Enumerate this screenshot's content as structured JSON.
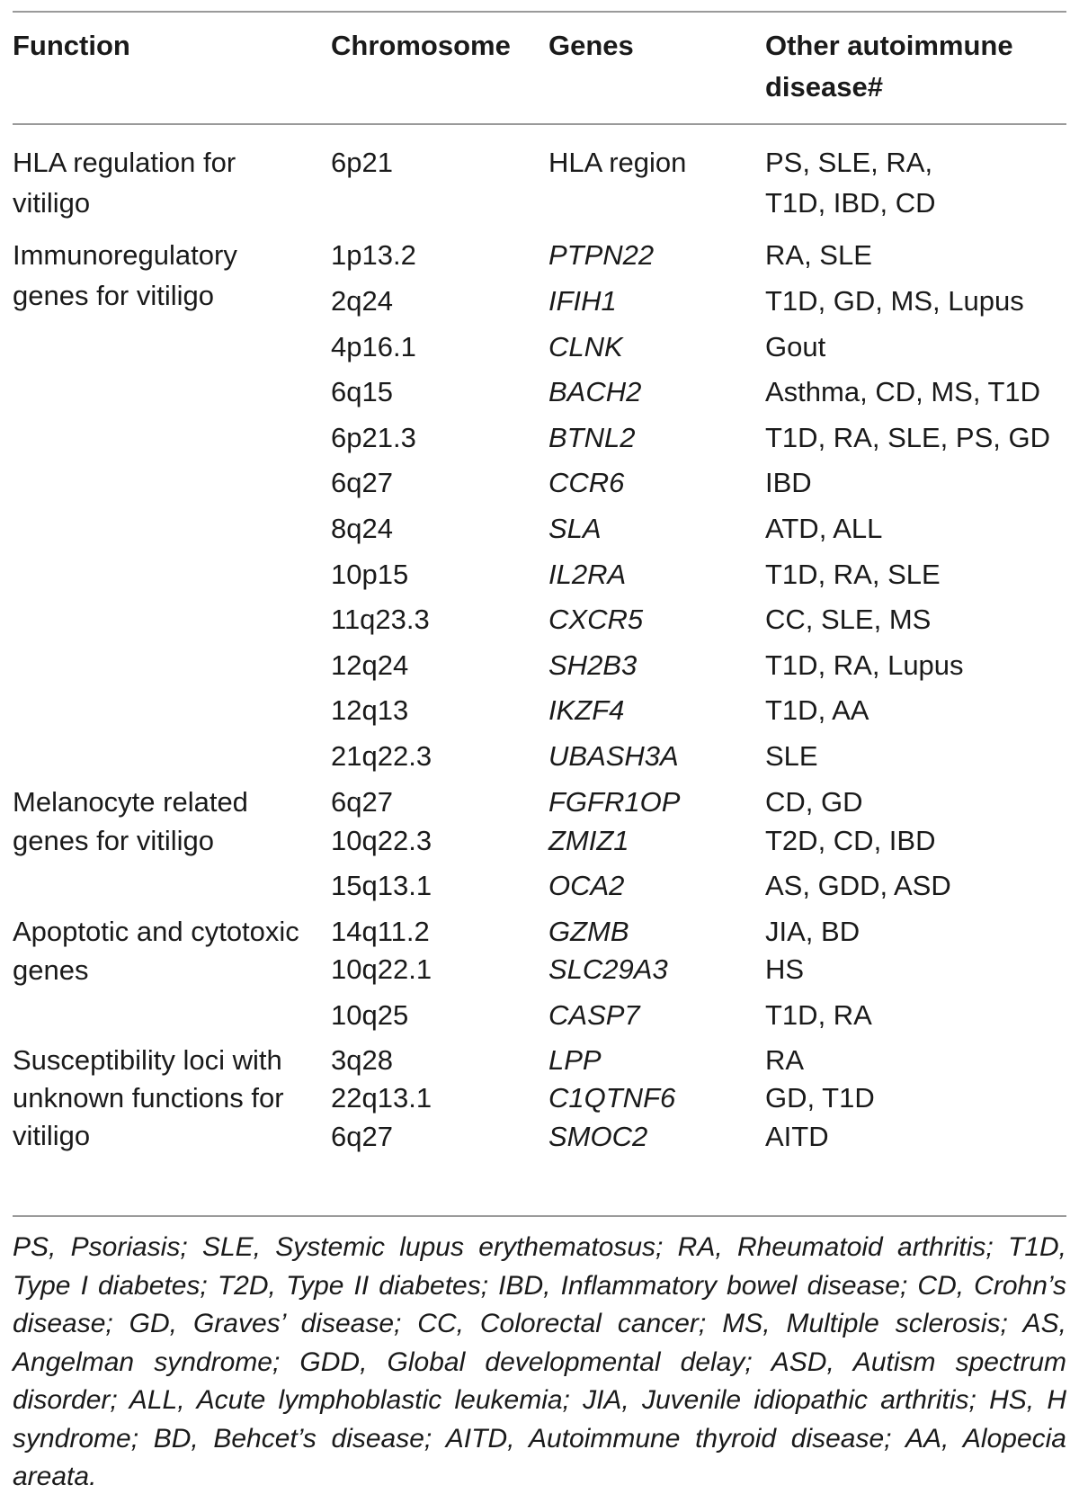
{
  "table": {
    "headers": {
      "function": "Function",
      "chromosome": "Chromosome",
      "genes": "Genes",
      "other_line1": "Other autoimmune",
      "other_line2": "disease#"
    },
    "groups": [
      {
        "function_lines": [
          "HLA regulation for",
          "vitiligo"
        ],
        "rows": [
          {
            "chromosome": "6p21",
            "gene": "HLA region",
            "gene_italic": false,
            "disease_lines": [
              "PS, SLE, RA,",
              "T1D, IBD, CD"
            ]
          }
        ]
      },
      {
        "function_lines": [
          "Immunoregulatory",
          "genes for vitiligo"
        ],
        "rows": [
          {
            "chromosome": "1p13.2",
            "gene": "PTPN22",
            "disease": "RA, SLE"
          },
          {
            "chromosome": "2q24",
            "gene": "IFIH1",
            "disease": "T1D, GD, MS, Lupus"
          },
          {
            "chromosome": "4p16.1",
            "gene": "CLNK",
            "disease": "Gout"
          },
          {
            "chromosome": "6q15",
            "gene": "BACH2",
            "disease": "Asthma, CD, MS, T1D"
          },
          {
            "chromosome": "6p21.3",
            "gene": "BTNL2",
            "disease": "T1D, RA, SLE, PS, GD"
          },
          {
            "chromosome": "6q27",
            "gene": "CCR6",
            "disease": "IBD"
          },
          {
            "chromosome": "8q24",
            "gene": "SLA",
            "disease": "ATD, ALL"
          },
          {
            "chromosome": "10p15",
            "gene": "IL2RA",
            "disease": "T1D, RA, SLE"
          },
          {
            "chromosome": "11q23.3",
            "gene": "CXCR5",
            "disease": "CC, SLE, MS"
          },
          {
            "chromosome": "12q24",
            "gene": "SH2B3",
            "disease": "T1D, RA, Lupus"
          },
          {
            "chromosome": "12q13",
            "gene": "IKZF4",
            "disease": "T1D, AA"
          },
          {
            "chromosome": "21q22.3",
            "gene": "UBASH3A",
            "disease": "SLE"
          }
        ]
      },
      {
        "function_lines": [
          "Melanocyte related",
          "genes for vitiligo"
        ],
        "rows": [
          {
            "chromosome": "6q27",
            "gene": "FGFR1OP",
            "disease": "CD, GD"
          },
          {
            "chromosome": "10q22.3",
            "gene": "ZMIZ1",
            "disease": "T2D, CD, IBD"
          },
          {
            "chromosome": "15q13.1",
            "gene": "OCA2",
            "disease": "AS, GDD, ASD"
          }
        ]
      },
      {
        "function_lines": [
          "Apoptotic and cytotoxic",
          "genes"
        ],
        "rows": [
          {
            "chromosome": "14q11.2",
            "gene": "GZMB",
            "disease": "JIA, BD"
          },
          {
            "chromosome": "10q22.1",
            "gene": "SLC29A3",
            "disease": "HS"
          },
          {
            "chromosome": "10q25",
            "gene": "CASP7",
            "disease": "T1D, RA"
          }
        ]
      },
      {
        "function_lines": [
          "Susceptibility loci with",
          "unknown functions for",
          "vitiligo"
        ],
        "rows": [
          {
            "chromosome": "3q28",
            "gene": "LPP",
            "disease": "RA"
          },
          {
            "chromosome": "22q13.1",
            "gene": "C1QTNF6",
            "disease": "GD, T1D"
          },
          {
            "chromosome": "6q27",
            "gene": "SMOC2",
            "disease": "AITD"
          }
        ]
      }
    ]
  },
  "footnote": "PS, Psoriasis; SLE, Systemic lupus erythematosus; RA, Rheumatoid arthritis; T1D, Type I diabetes; T2D, Type II diabetes; IBD, Inflammatory bowel disease; CD, Crohn’s disease; GD, Graves’ disease; CC, Colorectal cancer; MS, Multiple sclerosis; AS, Angelman syndrome; GDD, Global developmental delay; ASD, Autism spectrum disorder; ALL, Acute lymphoblastic leukemia; JIA, Juvenile idiopathic arthritis; HS, H syndrome; BD, Behcet’s disease; AITD, Autoimmune thyroid disease; AA, Alopecia areata."
}
